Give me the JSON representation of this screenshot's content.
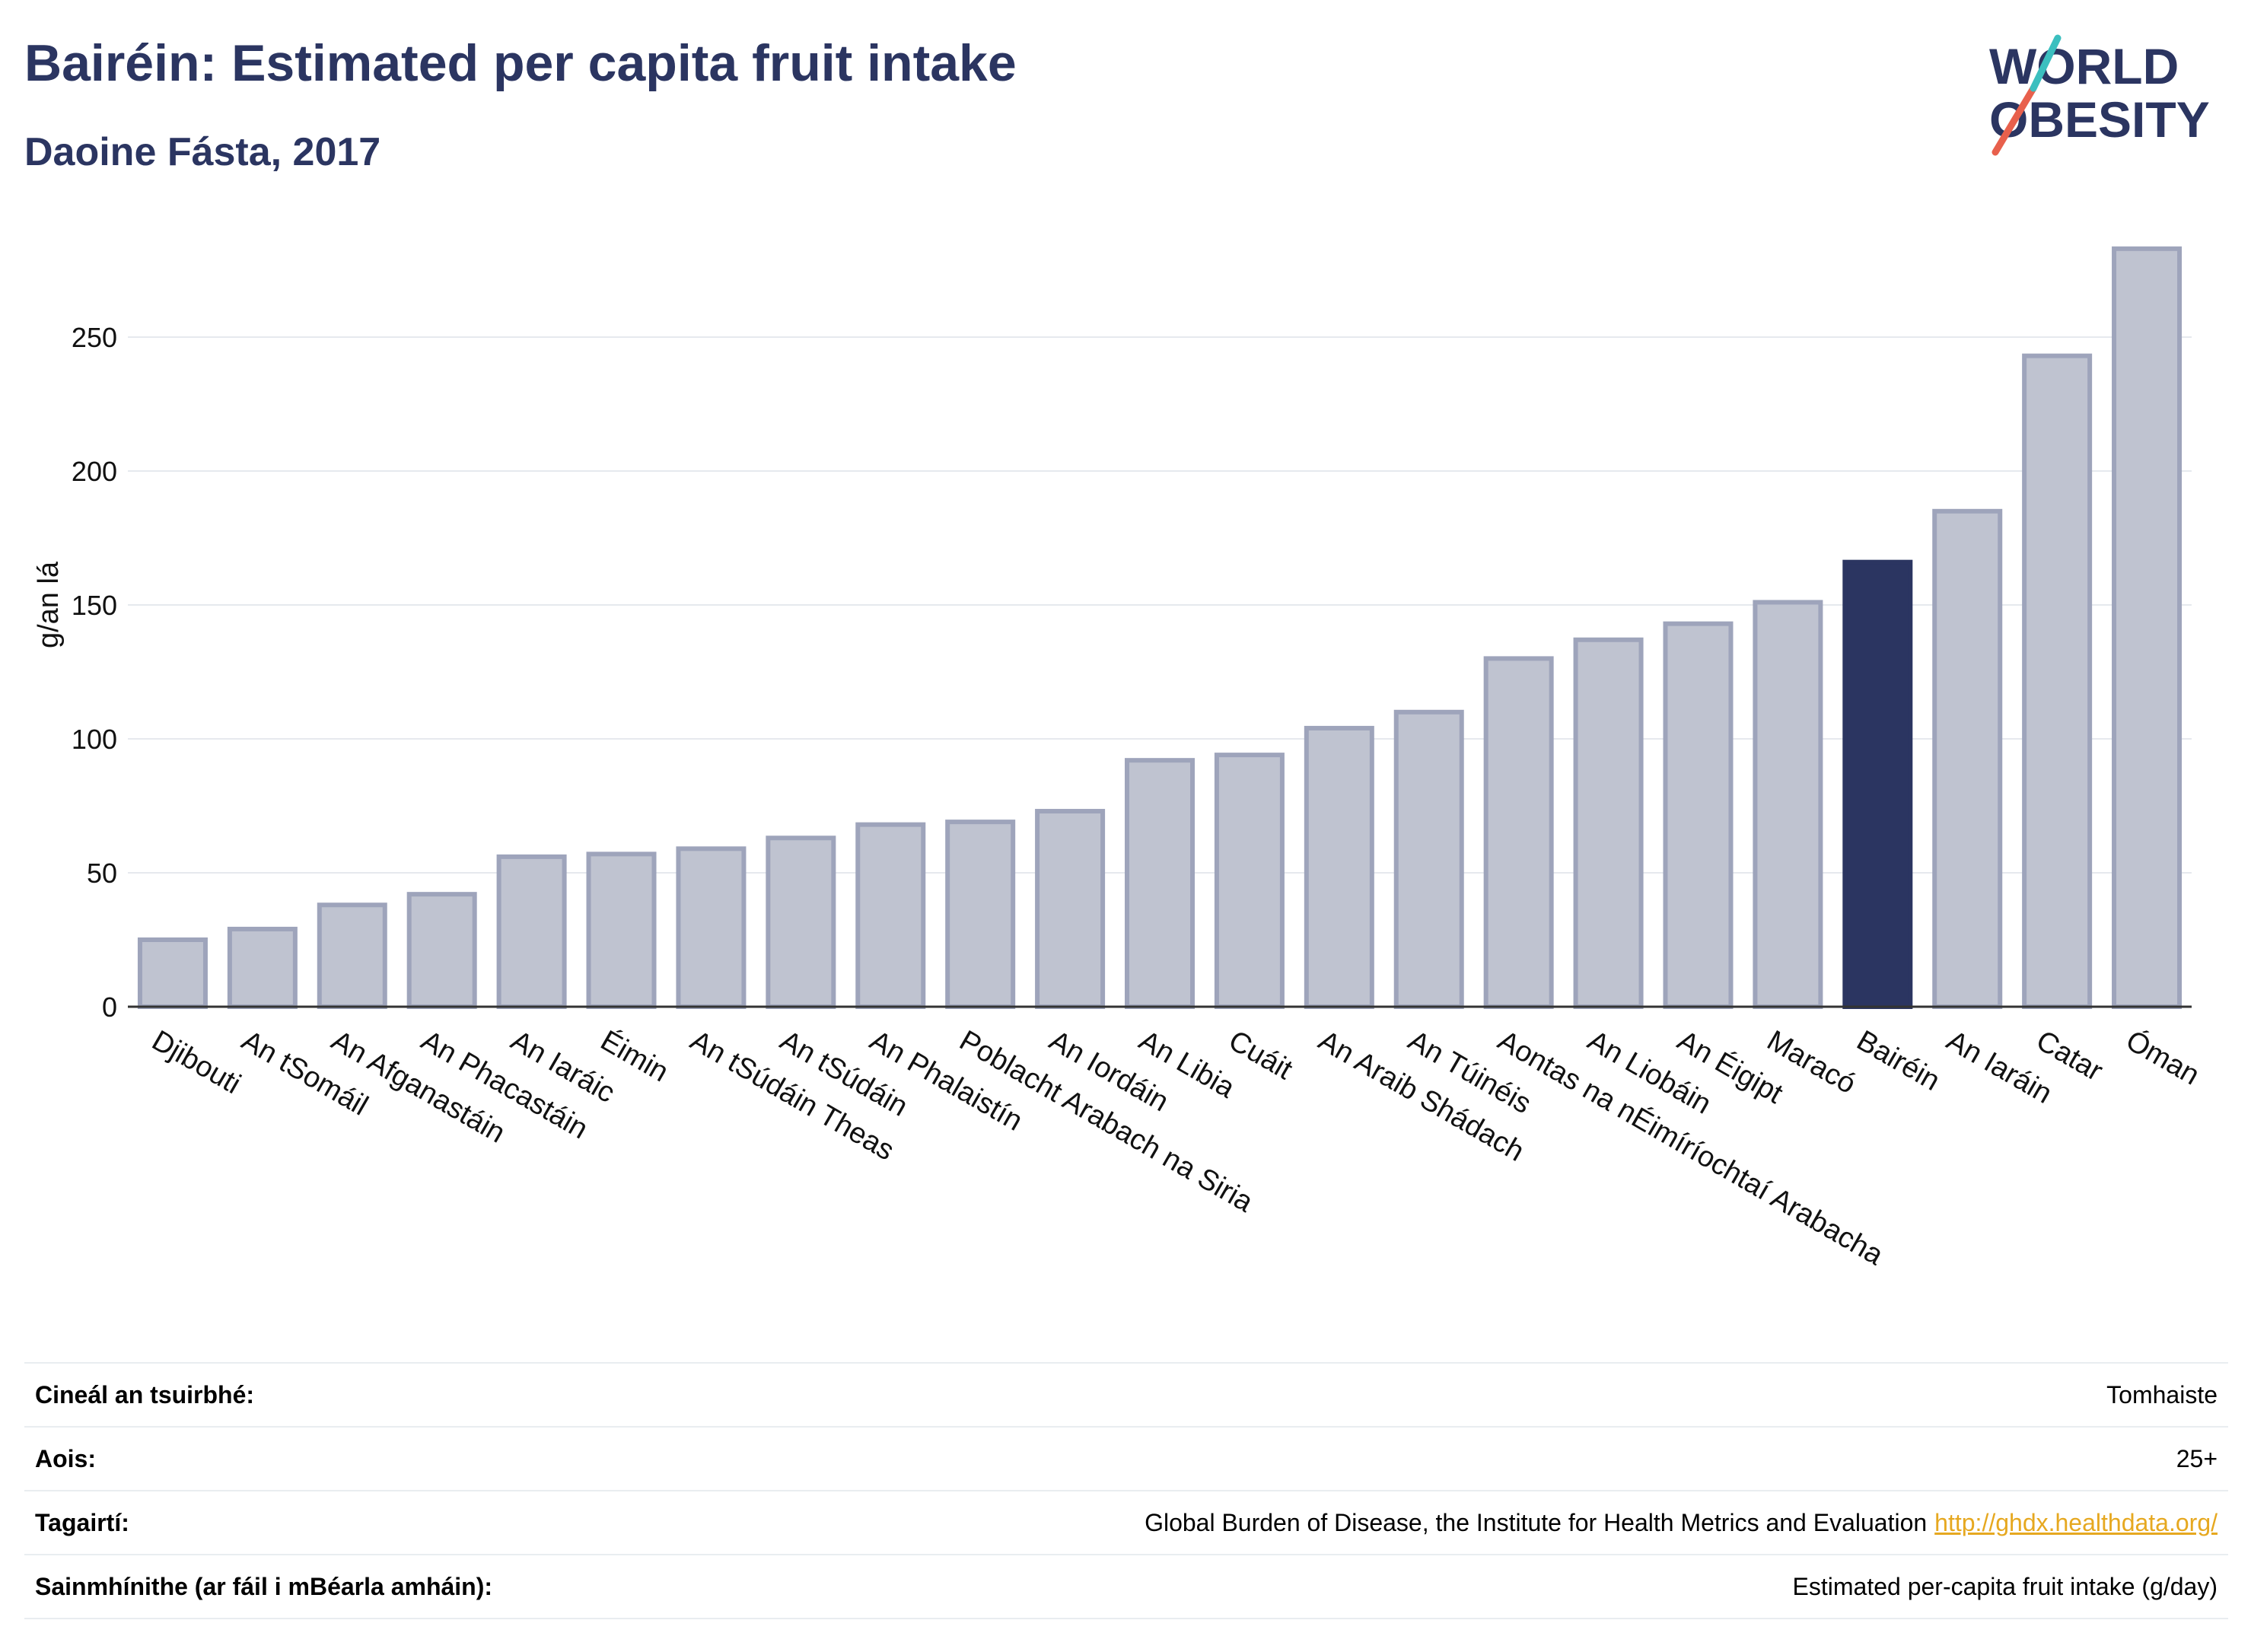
{
  "header": {
    "title": "Bairéin: Estimated per capita fruit intake",
    "subtitle": "Daoine Fásta, 2017"
  },
  "logo": {
    "line1": "WORLD",
    "line2": "OBESITY",
    "colors": {
      "text": "#2b3561",
      "slash_red": "#e8604c",
      "slash_teal": "#3bbfbf"
    }
  },
  "colors": {
    "bar_default": "#bfc3d0",
    "bar_default_stroke": "#9ea4bb",
    "bar_highlight": "#2b3561",
    "gridline": "#e6e9ee",
    "axis": "#333333"
  },
  "chart_data": {
    "type": "bar",
    "title": "Bairéin: Estimated per capita fruit intake",
    "subtitle": "Daoine Fásta, 2017",
    "xlabel": "",
    "ylabel": "g/an lá",
    "ylim": [
      0,
      290
    ],
    "yticks": [
      0,
      50,
      100,
      150,
      200,
      250
    ],
    "grid": true,
    "highlight": "Bairéin",
    "categories": [
      "Djibouti",
      "An tSomáil",
      "An Afganastáin",
      "An Phacastáin",
      "An Iaráic",
      "Éimin",
      "An tSúdáin Theas",
      "An tSúdáin",
      "An Phalaistín",
      "Poblacht Arabach na Siria",
      "An Iordáin",
      "An Libia",
      "Cuáit",
      "An Araib Shádach",
      "An Túinéis",
      "Aontas na nÉimíríochtaí Arabacha",
      "An Liobáin",
      "An Éigipt",
      "Maracó",
      "Bairéin",
      "An Iaráin",
      "Catar",
      "Óman"
    ],
    "values": [
      25,
      29,
      38,
      42,
      56,
      57,
      59,
      63,
      68,
      69,
      73,
      92,
      94,
      104,
      110,
      130,
      137,
      143,
      151,
      166,
      185,
      243,
      283
    ]
  },
  "info": {
    "rows": [
      {
        "key": "Cineál an tsuirbhé:",
        "value": "Tomhaiste"
      },
      {
        "key": "Aois:",
        "value": "25+"
      },
      {
        "key": "Tagairtí:",
        "value": "Global Burden of Disease, the Institute for Health Metrics and Evaluation",
        "link": "http://ghdx.healthdata.org/"
      },
      {
        "key": "Sainmhínithe (ar fáil i mBéarla amháin):",
        "value": "Estimated per-capita fruit intake (g/day)"
      }
    ]
  }
}
